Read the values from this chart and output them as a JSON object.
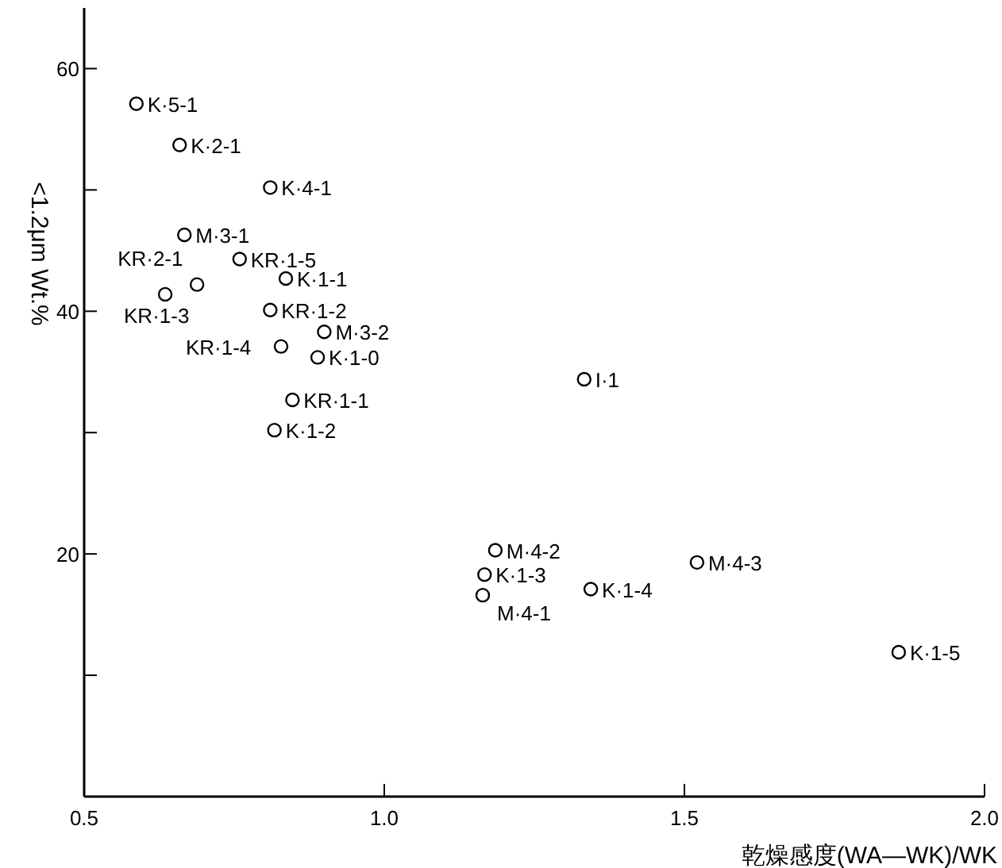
{
  "chart_data": {
    "type": "scatter",
    "xlabel": "乾燥感度(WA—WK)/WK",
    "ylabel": "<1.2μm Wt.%",
    "x": [
      0.587,
      0.659,
      0.81,
      0.667,
      0.759,
      0.688,
      0.836,
      0.635,
      0.81,
      0.9,
      0.828,
      0.889,
      0.847,
      0.817,
      1.333,
      1.185,
      1.167,
      1.164,
      1.344,
      1.521,
      1.857
    ],
    "values": [
      57.1,
      53.7,
      50.2,
      46.3,
      44.3,
      42.2,
      42.7,
      41.4,
      40.1,
      38.3,
      37.1,
      36.2,
      32.7,
      30.2,
      34.4,
      20.3,
      18.3,
      16.6,
      17.1,
      19.3,
      11.9
    ],
    "color": "#000000",
    "marker": "circle",
    "grid": false,
    "legend": false,
    "xlim": [
      0.5,
      2.0
    ],
    "ylim": [
      0,
      65
    ],
    "xticks": [
      0.5,
      {
        "value": 1.0,
        "label": "1.0"
      },
      1.5,
      {
        "value": 2.0,
        "label": "2.0"
      }
    ],
    "yticks": [
      {
        "value": 10,
        "label": null
      },
      20,
      {
        "value": 30,
        "label": null
      },
      40,
      {
        "value": 50,
        "label": null
      },
      60
    ],
    "annotations": [
      {
        "text": "K·5-1",
        "x": 0.587,
        "y": 57.1
      },
      {
        "text": "K·2-1",
        "x": 0.659,
        "y": 53.7
      },
      {
        "text": "K·4-1",
        "x": 0.81,
        "y": 50.2
      },
      {
        "text": "M·3-1",
        "x": 0.667,
        "y": 46.3
      },
      {
        "text": "KR·1-5",
        "x": 0.759,
        "y": 44.3
      },
      {
        "text": "KR·2-1",
        "x": 0.688,
        "y": 42.2
      },
      {
        "text": "K·1-1",
        "x": 0.836,
        "y": 42.7
      },
      {
        "text": "KR·1-3",
        "x": 0.635,
        "y": 41.4
      },
      {
        "text": "KR·1-2",
        "x": 0.81,
        "y": 40.1
      },
      {
        "text": "M·3-2",
        "x": 0.9,
        "y": 38.3
      },
      {
        "text": "KR·1-4",
        "x": 0.828,
        "y": 37.1
      },
      {
        "text": "K·1-0",
        "x": 0.889,
        "y": 36.2
      },
      {
        "text": "KR·1-1",
        "x": 0.847,
        "y": 32.7
      },
      {
        "text": "K·1-2",
        "x": 0.817,
        "y": 30.2
      },
      {
        "text": "I·1",
        "x": 1.333,
        "y": 34.4
      },
      {
        "text": "M·4-2",
        "x": 1.185,
        "y": 20.3
      },
      {
        "text": "K·1-3",
        "x": 1.167,
        "y": 18.3
      },
      {
        "text": "M·4-1",
        "x": 1.164,
        "y": 16.6
      },
      {
        "text": "K·1-4",
        "x": 1.344,
        "y": 17.1
      },
      {
        "text": "M·4-3",
        "x": 1.521,
        "y": 19.3
      },
      {
        "text": "K·1-5",
        "x": 1.857,
        "y": 11.9
      }
    ]
  }
}
